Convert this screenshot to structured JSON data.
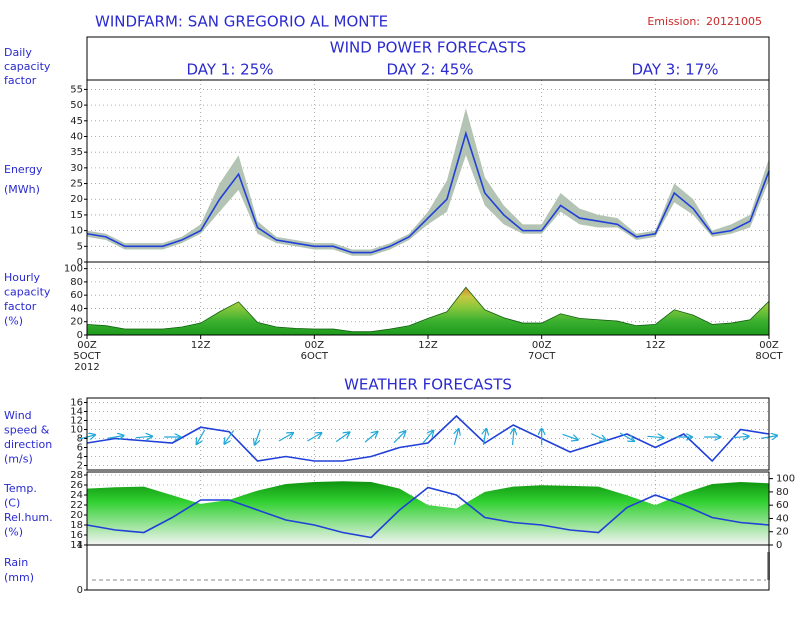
{
  "title": "WINDFARM: SAN GREGORIO AL MONTE",
  "emission_label": "Emission:",
  "emission": "20121005",
  "power_title": "WIND POWER FORECASTS",
  "days_label": [
    "Daily",
    "capacity",
    "factor"
  ],
  "days": [
    "DAY 1:  25%",
    "DAY 2:  45%",
    "DAY 3:  17%"
  ],
  "weather_title": "WEATHER FORECASTS",
  "xaxis": {
    "xlim": [
      0,
      72
    ],
    "xticks": [
      {
        "value": 0,
        "label": "00Z"
      },
      {
        "value": 12,
        "label": "12Z"
      },
      {
        "value": 24,
        "label": "00Z"
      },
      {
        "value": 36,
        "label": "12Z"
      },
      {
        "value": 48,
        "label": "00Z"
      },
      {
        "value": 60,
        "label": "12Z"
      },
      {
        "value": 72,
        "label": "00Z"
      }
    ],
    "dates": [
      {
        "value": 0,
        "label": "5OCT"
      },
      {
        "value": 24,
        "label": "6OCT"
      },
      {
        "value": 48,
        "label": "7OCT"
      },
      {
        "value": 72,
        "label": "8OCT"
      }
    ],
    "year": "2012"
  },
  "chart_data": [
    {
      "type": "band-line",
      "label": [
        "Energy",
        "(MWh)"
      ],
      "color": "#2040d8",
      "band_color": "#b4c4b4",
      "x": [
        0,
        2,
        4,
        6,
        8,
        10,
        12,
        14,
        16,
        18,
        20,
        22,
        24,
        26,
        28,
        30,
        32,
        34,
        36,
        38,
        40,
        42,
        44,
        46,
        48,
        50,
        52,
        54,
        56,
        58,
        60,
        62,
        64,
        66,
        68,
        70,
        72
      ],
      "values": [
        9,
        8,
        5,
        5,
        5,
        7,
        10,
        20,
        28,
        11,
        7,
        6,
        5,
        5,
        3,
        3,
        5,
        8,
        14,
        20,
        41,
        22,
        15,
        10,
        10,
        18,
        14,
        13,
        12,
        8,
        9,
        22,
        17,
        9,
        10,
        13,
        29
      ],
      "upper": [
        10,
        9,
        6,
        6,
        6,
        8,
        12,
        25,
        34,
        13,
        8,
        7,
        6,
        6,
        4,
        4,
        6,
        9,
        16,
        26,
        49,
        27,
        18,
        12,
        12,
        22,
        17,
        15,
        14,
        9,
        10,
        25,
        20,
        10,
        12,
        15,
        33
      ],
      "lower": [
        8,
        7,
        4,
        4,
        4,
        6,
        9,
        16,
        23,
        9,
        6,
        5,
        4,
        4,
        2,
        2,
        4,
        7,
        12,
        16,
        34,
        18,
        12,
        9,
        9,
        16,
        12,
        11,
        11,
        7,
        8,
        19,
        15,
        8,
        9,
        11,
        26
      ],
      "ylim": [
        0,
        58
      ],
      "yticks": [
        0,
        5,
        10,
        15,
        20,
        25,
        30,
        35,
        40,
        45,
        50,
        55
      ],
      "grid": true
    },
    {
      "type": "area",
      "label": [
        "Hourly",
        "capacity",
        "factor",
        "(%)"
      ],
      "color": "#106010",
      "x": [
        0,
        2,
        4,
        6,
        8,
        10,
        12,
        14,
        16,
        18,
        20,
        22,
        24,
        26,
        28,
        30,
        32,
        34,
        36,
        38,
        40,
        42,
        44,
        46,
        48,
        50,
        52,
        54,
        56,
        58,
        60,
        62,
        64,
        66,
        68,
        70,
        72
      ],
      "values": [
        16,
        14,
        9,
        9,
        9,
        12,
        18,
        35,
        50,
        19,
        12,
        10,
        9,
        9,
        5,
        5,
        9,
        14,
        25,
        35,
        72,
        38,
        26,
        18,
        18,
        32,
        25,
        23,
        21,
        14,
        16,
        38,
        30,
        16,
        18,
        23,
        51
      ],
      "ylim": [
        0,
        110
      ],
      "yticks": [
        0,
        20,
        40,
        60,
        80,
        100
      ],
      "grid": true
    },
    {
      "type": "wind",
      "label": [
        "Wind",
        "speed &",
        "direction",
        "(m/s)"
      ],
      "color": "#2040d8",
      "arrow_color": "#20a8d8",
      "x": [
        0,
        3,
        6,
        9,
        12,
        15,
        18,
        21,
        24,
        27,
        30,
        33,
        36,
        39,
        42,
        45,
        48,
        51,
        54,
        57,
        60,
        63,
        66,
        69,
        72
      ],
      "values": [
        7,
        8,
        7.5,
        7,
        10.5,
        9.5,
        3,
        4,
        3,
        3,
        4,
        6,
        7,
        13,
        7,
        11,
        8,
        5,
        7,
        9,
        6,
        9,
        3,
        10,
        9
      ],
      "direction": [
        75,
        80,
        85,
        90,
        210,
        215,
        200,
        60,
        60,
        55,
        50,
        45,
        40,
        15,
        10,
        5,
        0,
        110,
        115,
        120,
        95,
        90,
        90,
        85,
        80
      ],
      "ylim": [
        1,
        17
      ],
      "yticks": [
        2,
        4,
        6,
        8,
        10,
        12,
        14,
        16
      ],
      "grid": true
    },
    {
      "type": "temp-humidity",
      "label": [
        "Temp.",
        "(C)",
        "Rel.hum.",
        "(%)"
      ],
      "color": "#2040d8",
      "x": [
        0,
        3,
        6,
        9,
        12,
        15,
        18,
        21,
        24,
        27,
        30,
        33,
        36,
        39,
        42,
        45,
        48,
        51,
        54,
        57,
        60,
        63,
        66,
        69,
        72
      ],
      "values": [
        18,
        17,
        16.5,
        19.5,
        23,
        23,
        21,
        19,
        18,
        16.5,
        15.5,
        21,
        25.5,
        24,
        19.5,
        18.5,
        18,
        17,
        16.5,
        21.5,
        24,
        22,
        19.5,
        18.5,
        18
      ],
      "humidity": [
        85,
        87,
        88,
        75,
        62,
        68,
        82,
        92,
        95,
        96,
        95,
        85,
        60,
        55,
        80,
        88,
        90,
        89,
        88,
        75,
        60,
        78,
        92,
        95,
        93
      ],
      "ylim": [
        14,
        28.6
      ],
      "yticks": [
        14,
        16,
        18,
        20,
        22,
        24,
        26,
        28
      ],
      "y2lim": [
        0,
        110
      ],
      "y2ticks": [
        0,
        20,
        40,
        60,
        80,
        100
      ],
      "grid": true
    },
    {
      "type": "bar",
      "label": [
        "Rain",
        "(mm)"
      ],
      "color": "#2040d8",
      "x": [
        0,
        3,
        6,
        9,
        12,
        15,
        18,
        21,
        24,
        27,
        30,
        33,
        36,
        39,
        42,
        45,
        48,
        51,
        54,
        57,
        60,
        63,
        66,
        69,
        72
      ],
      "values": [
        0,
        0,
        0,
        0,
        0,
        0,
        0,
        0,
        0,
        0,
        0,
        0,
        0,
        0,
        0,
        0,
        0,
        0,
        0,
        0,
        0,
        0,
        0,
        0,
        0
      ],
      "ylim": [
        0,
        1
      ],
      "yticks": [
        0,
        1
      ],
      "grid": false
    }
  ]
}
